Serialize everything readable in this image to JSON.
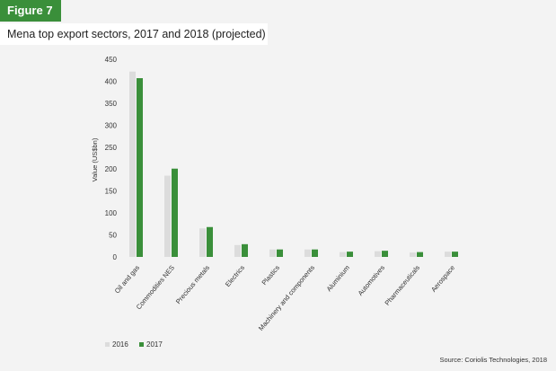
{
  "figure_label": "Figure 7",
  "title": "Mena top export sectors, 2017 and 2018 (projected)",
  "source": "Source: Coriolis Technologies, 2018",
  "colors": {
    "series_2016": "#dcdcdc",
    "series_2017": "#3a8f3a",
    "label_bg": "#3a8f3a"
  },
  "chart_data": {
    "type": "bar",
    "ylabel": "Value (US$bn)",
    "ylim": [
      0,
      450
    ],
    "yticks": [
      0,
      50,
      100,
      150,
      200,
      250,
      300,
      350,
      400,
      450
    ],
    "grid": false,
    "legend_position": "bottom-left",
    "categories": [
      "Oil and gas",
      "Commodities NES",
      "Precious metals",
      "Electrics",
      "Plastics",
      "Machinery and components",
      "Aluminium",
      "Automotives",
      "Pharmaceuticals",
      "Aerospace"
    ],
    "series": [
      {
        "name": "2016",
        "values": [
          422,
          185,
          65,
          27,
          17,
          17,
          11,
          13,
          10,
          12
        ]
      },
      {
        "name": "2017",
        "values": [
          407,
          201,
          68,
          29,
          17,
          17,
          12,
          14,
          11,
          12
        ]
      }
    ]
  }
}
